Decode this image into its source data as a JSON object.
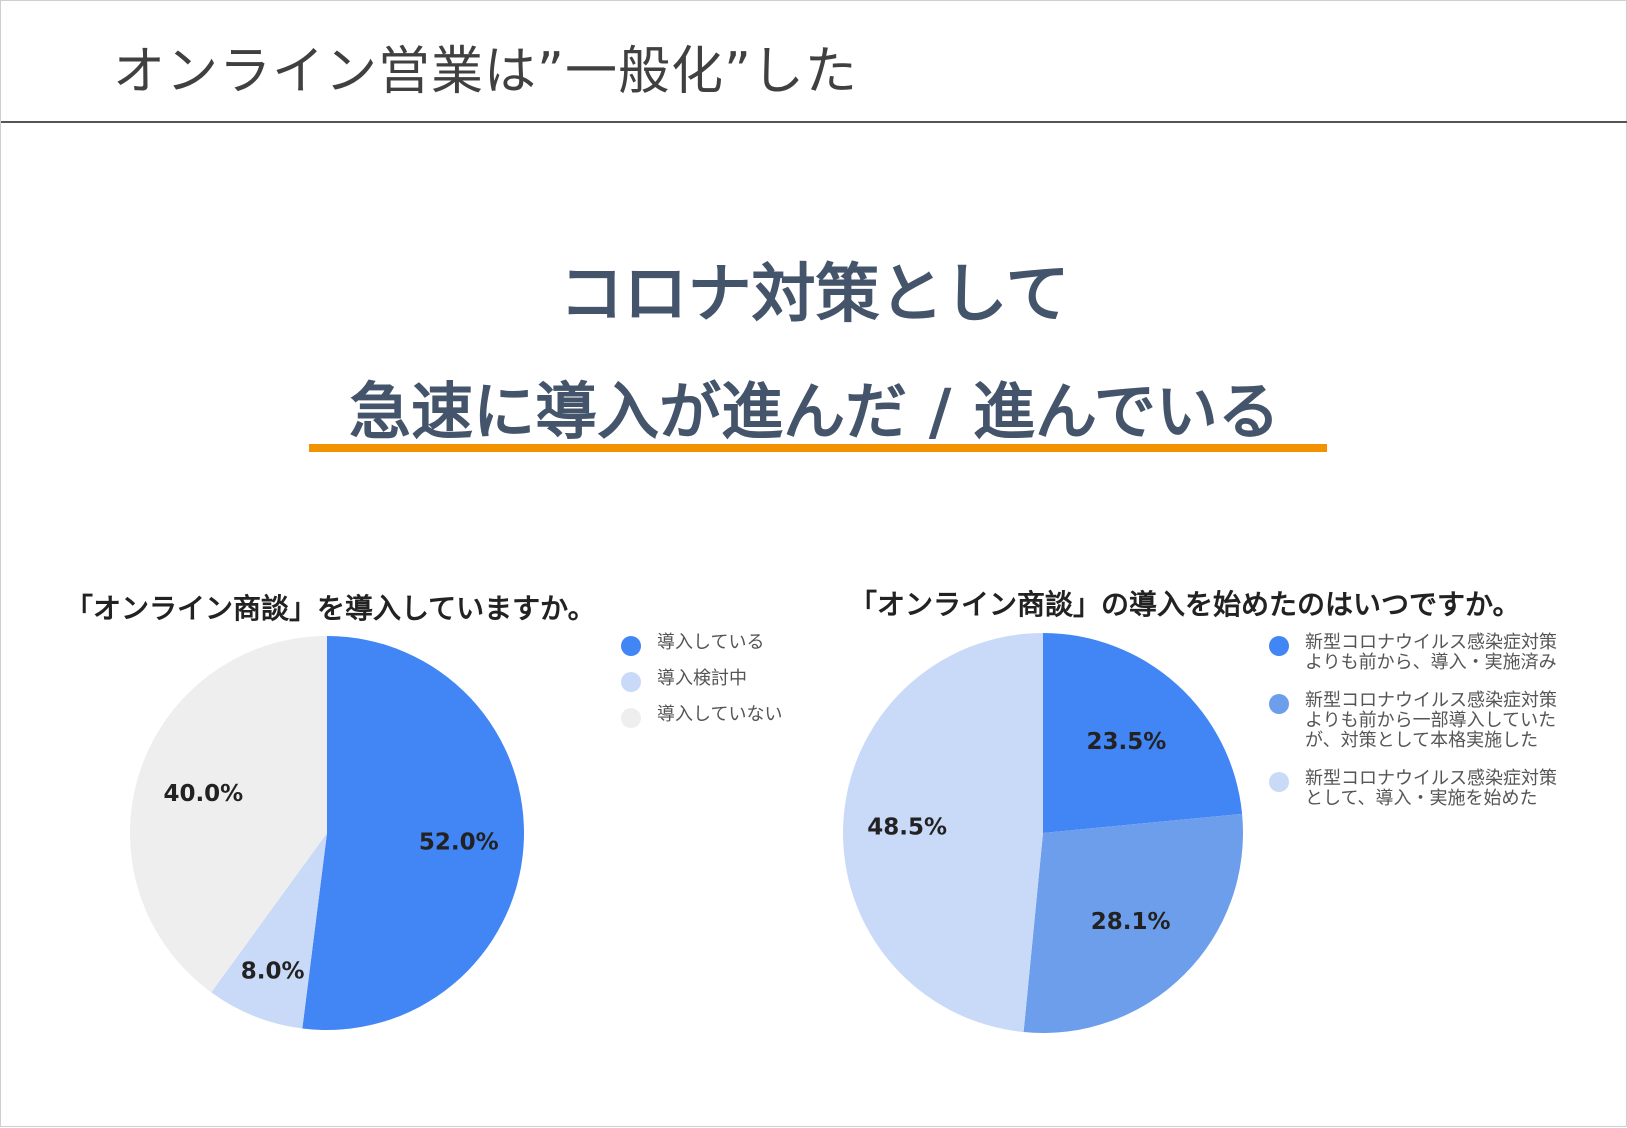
{
  "header": {
    "title": "オンライン営業は”一般化”した"
  },
  "headline": {
    "line1": "コロナ対策として",
    "line2": "急速に導入が進んだ / 進んでいる",
    "underline_color": "#f39200"
  },
  "chart_data": [
    {
      "type": "pie",
      "title": "「オンライン商談」を導入していますか。",
      "categories": [
        "導入している",
        "導入検討中",
        "導入していない"
      ],
      "values": [
        52.0,
        8.0,
        40.0
      ],
      "value_labels": [
        "52.0%",
        "8.0%",
        "40.0%"
      ],
      "colors": [
        "#4285f4",
        "#c9daf8",
        "#eeeeee"
      ],
      "start_angle_deg": 0,
      "direction": "clockwise",
      "legend_position": "right"
    },
    {
      "type": "pie",
      "title": "「オンライン商談」の導入を始めたのはいつですか。",
      "categories": [
        "新型コロナウイルス感染症対策\nよりも前から、導入・実施済み",
        "新型コロナウイルス感染症対策\nよりも前から一部導入していた\nが、対策として本格実施した",
        "新型コロナウイルス感染症対策\nとして、導入・実施を始めた"
      ],
      "values": [
        23.5,
        28.1,
        48.5
      ],
      "value_labels": [
        "23.5%",
        "28.1%",
        "48.5%"
      ],
      "colors": [
        "#4285f4",
        "#6d9eeb",
        "#c9daf8"
      ],
      "start_angle_deg": 0,
      "direction": "clockwise",
      "legend_position": "right"
    }
  ]
}
